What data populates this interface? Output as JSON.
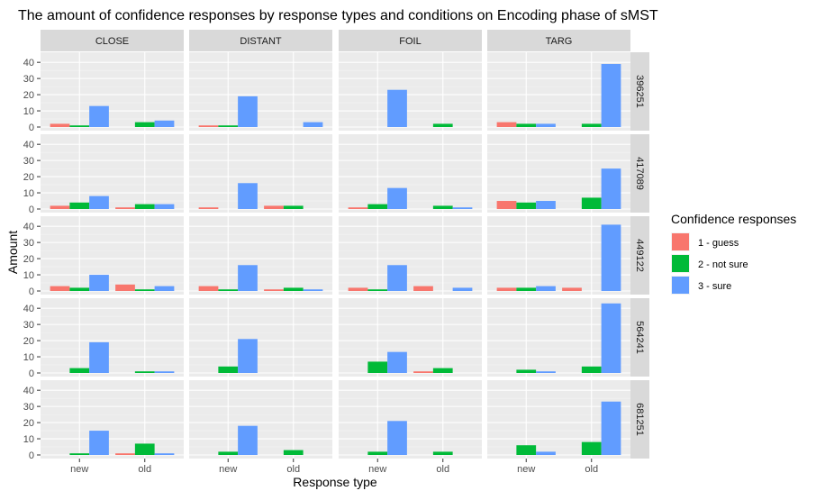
{
  "chart_data": {
    "type": "bar",
    "title": "The amount of confidence responses by response types and conditions on Encoding phase of sMST",
    "xlabel": "Response type",
    "ylabel": "Amount",
    "ylim": [
      0,
      44
    ],
    "yticks": [
      0,
      10,
      20,
      30,
      40
    ],
    "grid": true,
    "legend_position": "right",
    "legend": {
      "title": "Confidence responses",
      "items": [
        {
          "label": "1 - guess",
          "color": "#F8766D"
        },
        {
          "label": "2 - not sure",
          "color": "#00BA38"
        },
        {
          "label": "3 - sure",
          "color": "#619CFF"
        }
      ]
    },
    "columns": [
      "CLOSE",
      "DISTANT",
      "FOIL",
      "TARG"
    ],
    "rows": [
      "396251",
      "417089",
      "449122",
      "564241",
      "681251"
    ],
    "categories": [
      "new",
      "old"
    ],
    "panels": [
      {
        "row": "396251",
        "col": "CLOSE",
        "bars": {
          "new": [
            2,
            1,
            13
          ],
          "old": [
            0,
            3,
            4
          ]
        }
      },
      {
        "row": "396251",
        "col": "DISTANT",
        "bars": {
          "new": [
            1,
            1,
            19
          ],
          "old": [
            0,
            0,
            3
          ]
        }
      },
      {
        "row": "396251",
        "col": "FOIL",
        "bars": {
          "new": [
            0,
            0,
            23
          ],
          "old": [
            0,
            2,
            0
          ]
        }
      },
      {
        "row": "396251",
        "col": "TARG",
        "bars": {
          "new": [
            3,
            2,
            2
          ],
          "old": [
            0,
            2,
            39
          ]
        }
      },
      {
        "row": "417089",
        "col": "CLOSE",
        "bars": {
          "new": [
            2,
            4,
            8
          ],
          "old": [
            1,
            3,
            3
          ]
        }
      },
      {
        "row": "417089",
        "col": "DISTANT",
        "bars": {
          "new": [
            1,
            0,
            16
          ],
          "old": [
            2,
            2,
            0
          ]
        }
      },
      {
        "row": "417089",
        "col": "FOIL",
        "bars": {
          "new": [
            1,
            3,
            13
          ],
          "old": [
            0,
            2,
            1
          ]
        }
      },
      {
        "row": "417089",
        "col": "TARG",
        "bars": {
          "new": [
            5,
            4,
            5
          ],
          "old": [
            0,
            7,
            25
          ]
        }
      },
      {
        "row": "449122",
        "col": "CLOSE",
        "bars": {
          "new": [
            3,
            2,
            10
          ],
          "old": [
            4,
            1,
            3
          ]
        }
      },
      {
        "row": "449122",
        "col": "DISTANT",
        "bars": {
          "new": [
            3,
            1,
            16
          ],
          "old": [
            1,
            2,
            1
          ]
        }
      },
      {
        "row": "449122",
        "col": "FOIL",
        "bars": {
          "new": [
            2,
            1,
            16
          ],
          "old": [
            3,
            0,
            2
          ]
        }
      },
      {
        "row": "449122",
        "col": "TARG",
        "bars": {
          "new": [
            2,
            2,
            3
          ],
          "old": [
            2,
            0,
            41
          ]
        }
      },
      {
        "row": "564241",
        "col": "CLOSE",
        "bars": {
          "new": [
            0,
            3,
            19
          ],
          "old": [
            0,
            1,
            1
          ]
        }
      },
      {
        "row": "564241",
        "col": "DISTANT",
        "bars": {
          "new": [
            0,
            4,
            21
          ],
          "old": [
            0,
            0,
            0
          ]
        }
      },
      {
        "row": "564241",
        "col": "FOIL",
        "bars": {
          "new": [
            0,
            7,
            13
          ],
          "old": [
            1,
            3,
            0
          ]
        }
      },
      {
        "row": "564241",
        "col": "TARG",
        "bars": {
          "new": [
            0,
            2,
            1
          ],
          "old": [
            0,
            4,
            43
          ]
        }
      },
      {
        "row": "681251",
        "col": "CLOSE",
        "bars": {
          "new": [
            0,
            1,
            15
          ],
          "old": [
            1,
            7,
            1
          ]
        }
      },
      {
        "row": "681251",
        "col": "DISTANT",
        "bars": {
          "new": [
            0,
            2,
            18
          ],
          "old": [
            0,
            3,
            0
          ]
        }
      },
      {
        "row": "681251",
        "col": "FOIL",
        "bars": {
          "new": [
            0,
            2,
            21
          ],
          "old": [
            0,
            2,
            0
          ]
        }
      },
      {
        "row": "681251",
        "col": "TARG",
        "bars": {
          "new": [
            0,
            6,
            2
          ],
          "old": [
            0,
            8,
            33
          ]
        }
      }
    ]
  }
}
